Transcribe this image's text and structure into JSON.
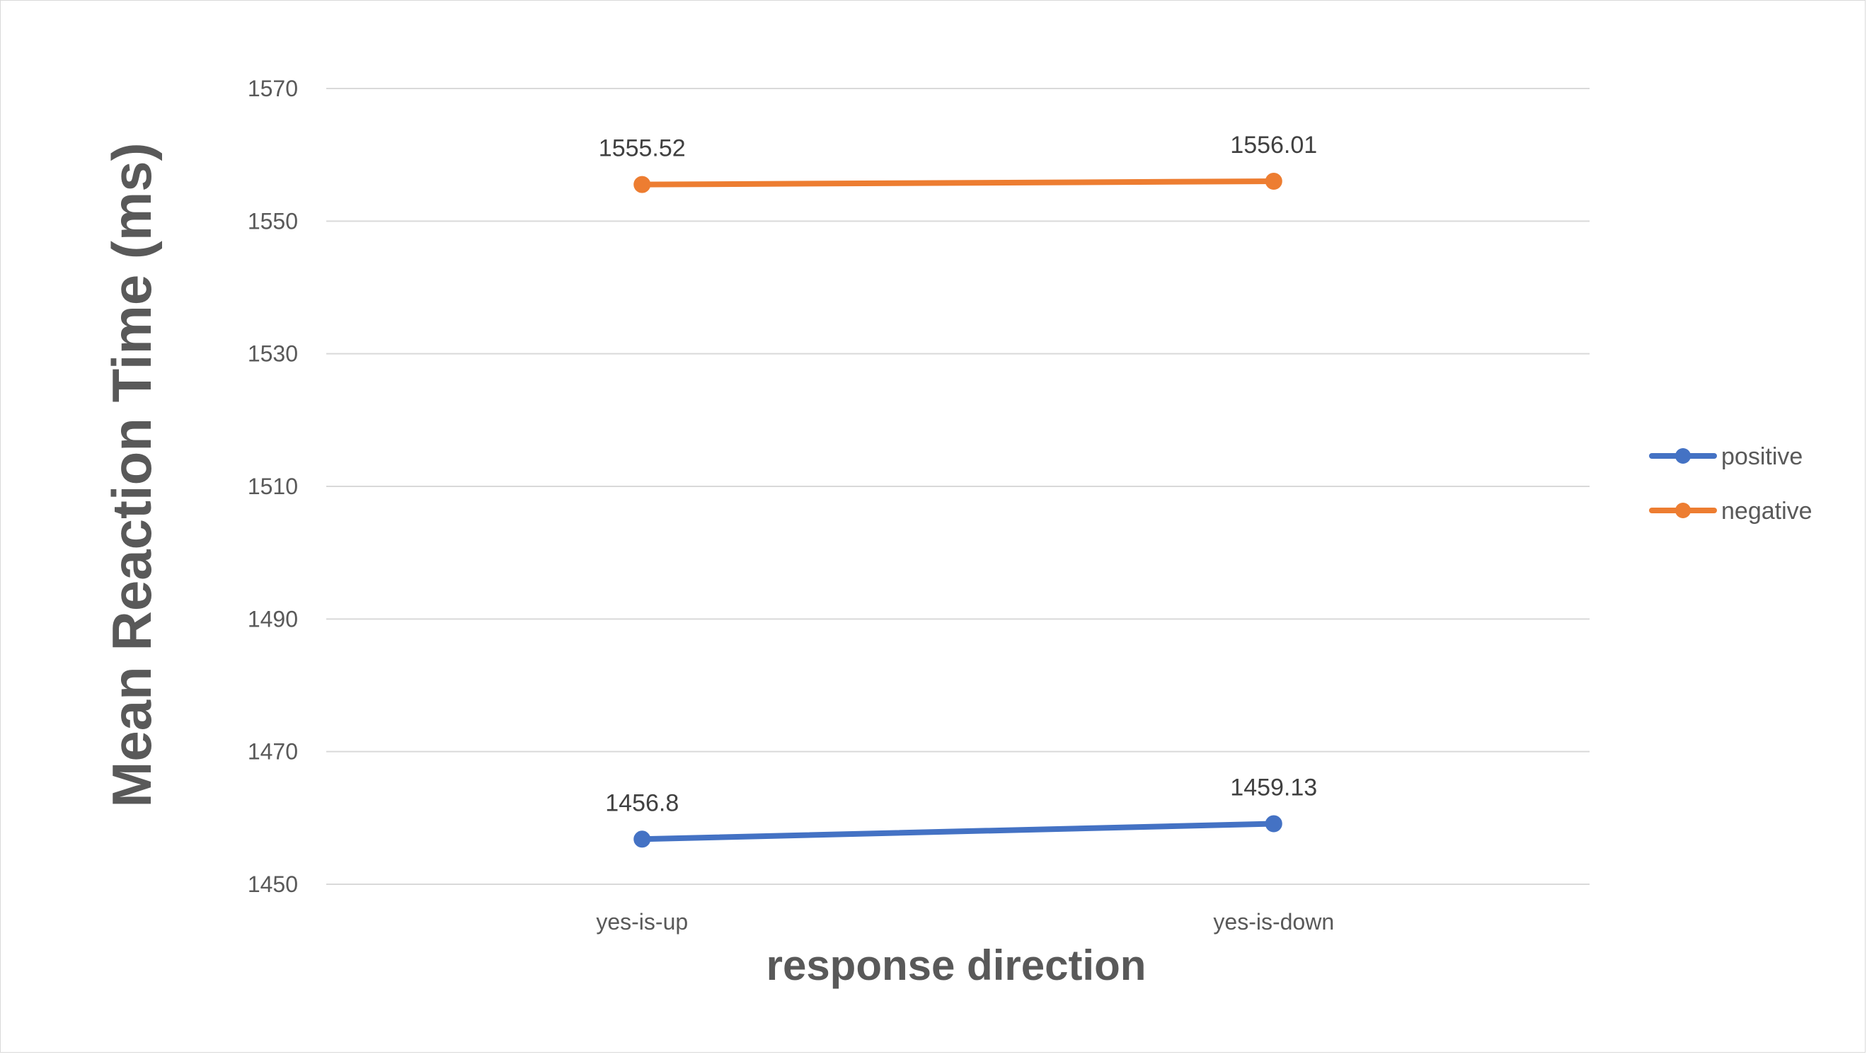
{
  "chart_data": {
    "type": "line",
    "title": "",
    "xlabel": "response direction",
    "ylabel": "Mean Reaction Time (ms)",
    "categories": [
      "yes-is-up",
      "yes-is-down"
    ],
    "ylim": [
      1450,
      1570
    ],
    "yticks": [
      1450,
      1470,
      1490,
      1510,
      1530,
      1550,
      1570
    ],
    "grid": true,
    "legend_position": "right",
    "series": [
      {
        "name": "positive",
        "values": [
          1456.8,
          1459.13
        ],
        "labels": [
          "1456.8",
          "1459.13"
        ],
        "color": "#4472c4"
      },
      {
        "name": "negative",
        "values": [
          1555.52,
          1556.01
        ],
        "labels": [
          "1555.52",
          "1556.01"
        ],
        "color": "#ed7d31"
      }
    ]
  }
}
